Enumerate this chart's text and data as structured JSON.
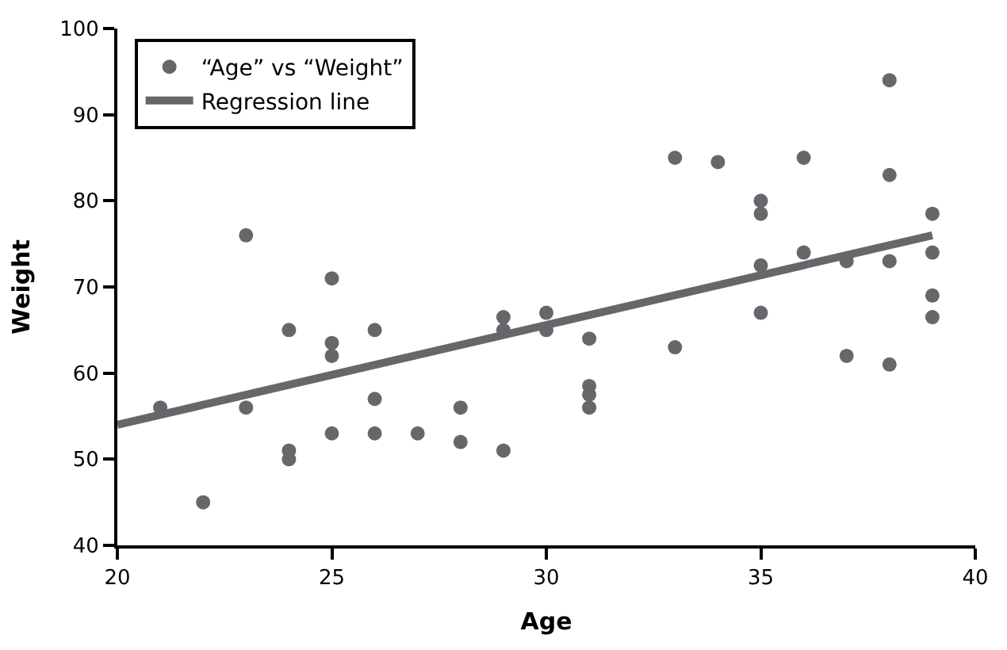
{
  "chart_data": {
    "type": "scatter",
    "xlabel": "Age",
    "ylabel": "Weight",
    "xlim": [
      20,
      40
    ],
    "xticks": [
      20,
      25,
      30,
      35,
      40
    ],
    "ylim": [
      40,
      100
    ],
    "yticks": [
      40,
      50,
      60,
      70,
      80,
      90,
      100
    ],
    "legend": "top left",
    "series": [
      {
        "name": "“Age” vs “Weight”",
        "marker": "circle",
        "color": "#66676b",
        "x": [
          21,
          22,
          23,
          23,
          24,
          24,
          24,
          25,
          25,
          25,
          25,
          26,
          26,
          26,
          27,
          28,
          28,
          29,
          29,
          29,
          30,
          30,
          31,
          31,
          31,
          31,
          33,
          33,
          34,
          35,
          35,
          35,
          35,
          36,
          36,
          37,
          37,
          38,
          38,
          38,
          38,
          39,
          39,
          39,
          39
        ],
        "values": [
          56,
          45,
          76,
          56,
          65,
          51,
          50,
          71,
          63.5,
          62,
          53,
          65,
          57,
          53,
          53,
          56,
          52,
          66.5,
          65,
          51,
          67,
          65,
          64,
          58.5,
          57.5,
          56,
          85,
          63,
          84.5,
          80,
          78.5,
          72.5,
          67,
          85,
          74,
          73,
          62,
          94,
          83,
          73,
          61,
          78.5,
          74,
          69,
          66.5
        ]
      },
      {
        "name": "Regression line",
        "type": "line",
        "color": "#66676b",
        "x": [
          20,
          39
        ],
        "values": [
          54,
          76
        ]
      }
    ]
  }
}
